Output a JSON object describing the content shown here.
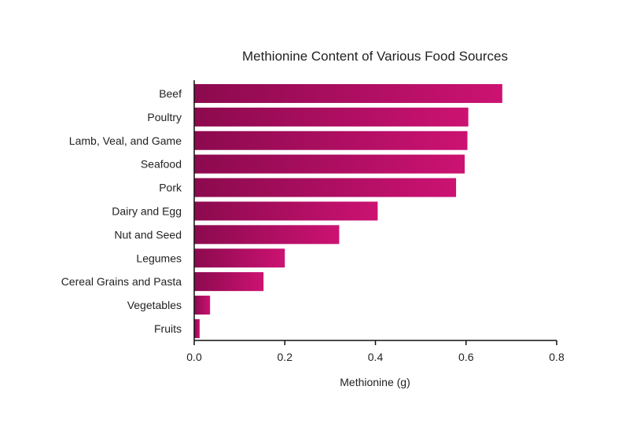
{
  "chart_data": {
    "type": "bar",
    "orientation": "horizontal",
    "title": "Methionine Content of Various Food Sources",
    "xlabel": "Methionine (g)",
    "ylabel": "",
    "categories": [
      "Beef",
      "Poultry",
      "Lamb, Veal, and Game",
      "Seafood",
      "Pork",
      "Dairy and Egg",
      "Nut and Seed",
      "Legumes",
      "Cereal Grains and Pasta",
      "Vegetables",
      "Fruits"
    ],
    "values": [
      0.68,
      0.605,
      0.603,
      0.597,
      0.578,
      0.405,
      0.32,
      0.2,
      0.153,
      0.035,
      0.012
    ],
    "xlim": [
      0,
      0.8
    ],
    "xticks": [
      "0.0",
      "0.2",
      "0.4",
      "0.6",
      "0.8"
    ],
    "grid": false,
    "legend": "none",
    "colors": {
      "bar_start": "#8c0a4e",
      "bar_end": "#cc1272",
      "axis": "#111111",
      "text": "#222222"
    }
  }
}
